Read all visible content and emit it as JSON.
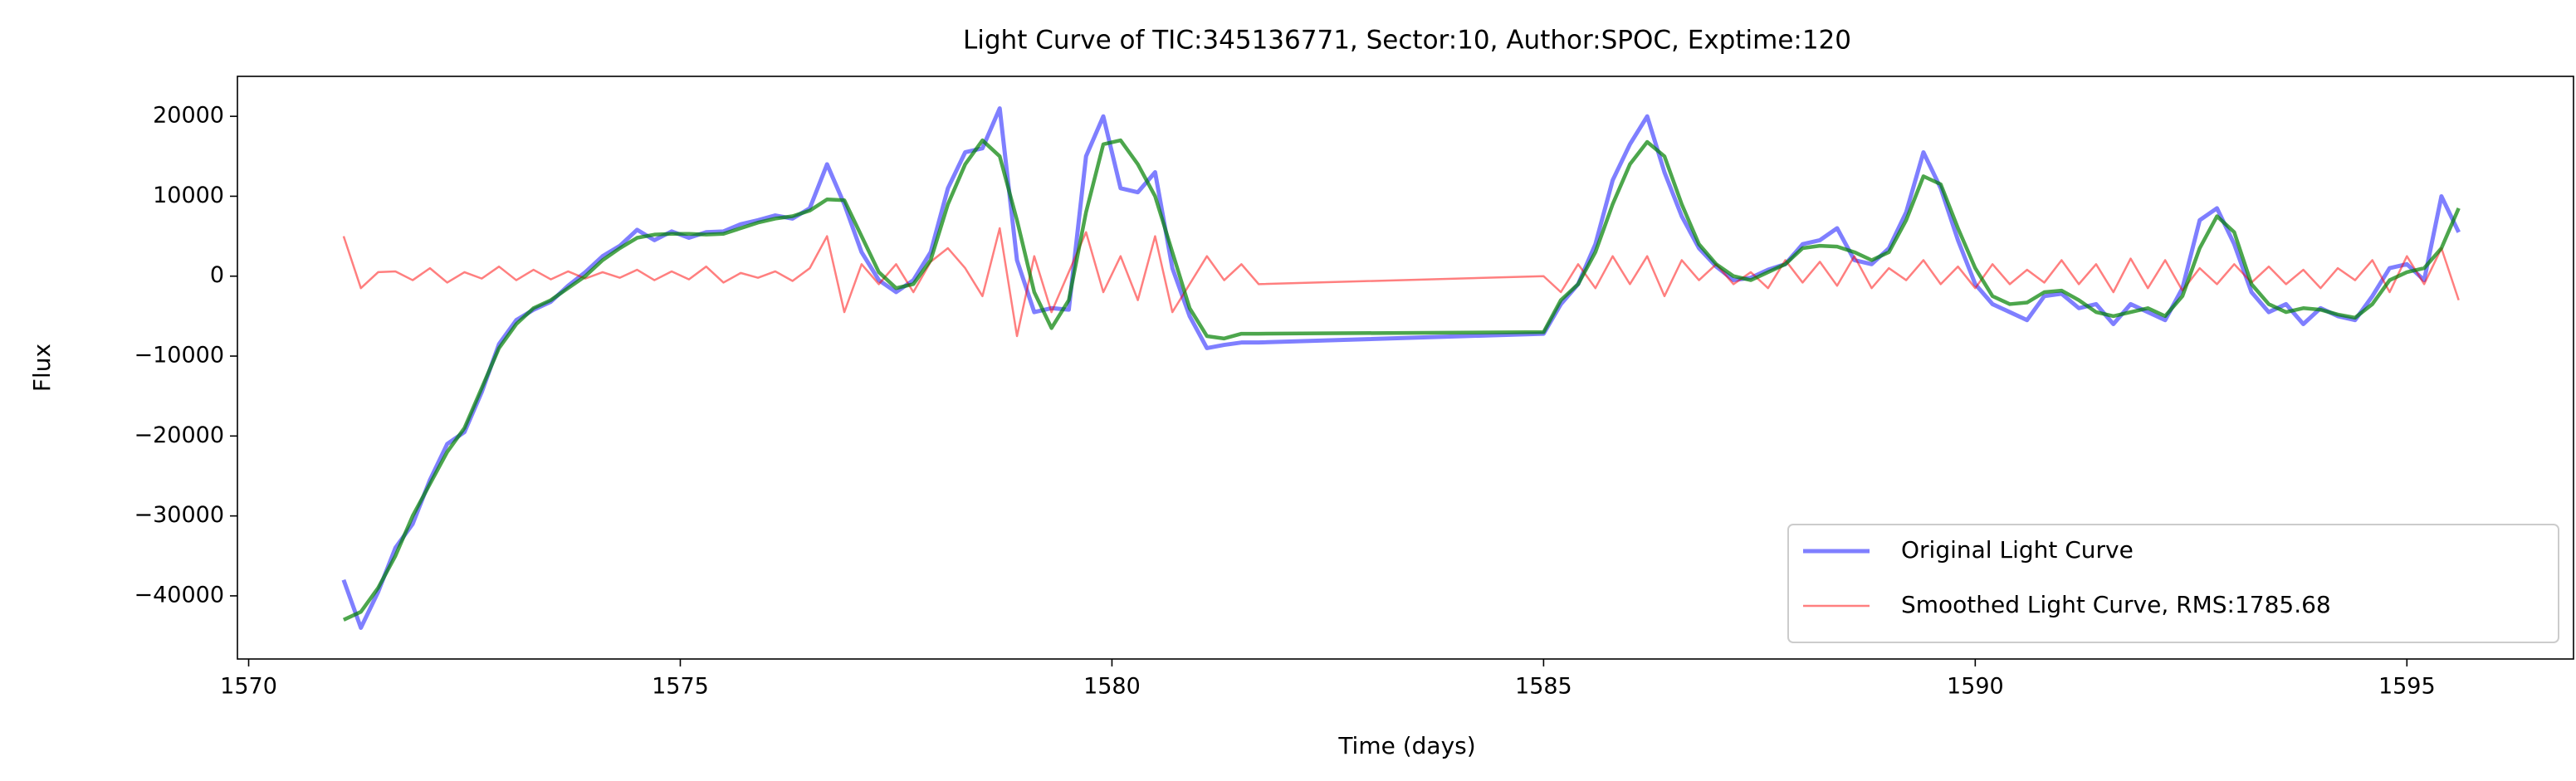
{
  "chart_data": {
    "type": "line",
    "title": "Light Curve of TIC:345136771, Sector:10, Author:SPOC, Exptime:120",
    "xlabel": "Time (days)",
    "ylabel": "Flux",
    "x": [
      1571.1,
      1571.3,
      1571.5,
      1571.7,
      1571.9,
      1572.1,
      1572.3,
      1572.5,
      1572.7,
      1572.9,
      1573.1,
      1573.3,
      1573.5,
      1573.7,
      1573.9,
      1574.1,
      1574.3,
      1574.5,
      1574.7,
      1574.9,
      1575.1,
      1575.3,
      1575.5,
      1575.7,
      1575.9,
      1576.1,
      1576.3,
      1576.5,
      1576.7,
      1576.9,
      1577.1,
      1577.3,
      1577.5,
      1577.7,
      1577.9,
      1578.1,
      1578.3,
      1578.5,
      1578.7,
      1578.9,
      1579.1,
      1579.3,
      1579.5,
      1579.7,
      1579.9,
      1580.1,
      1580.3,
      1580.5,
      1580.7,
      1580.9,
      1581.1,
      1581.3,
      1581.5,
      1581.7,
      1585.0,
      1585.2,
      1585.4,
      1585.6,
      1585.8,
      1586.0,
      1586.2,
      1586.4,
      1586.6,
      1586.8,
      1587.0,
      1587.2,
      1587.4,
      1587.6,
      1587.8,
      1588.0,
      1588.2,
      1588.4,
      1588.6,
      1588.8,
      1589.0,
      1589.2,
      1589.4,
      1589.6,
      1589.8,
      1590.0,
      1590.2,
      1590.4,
      1590.6,
      1590.8,
      1591.0,
      1591.2,
      1591.4,
      1591.6,
      1591.8,
      1592.0,
      1592.2,
      1592.4,
      1592.6,
      1592.8,
      1593.0,
      1593.2,
      1593.4,
      1593.6,
      1593.8,
      1594.0,
      1594.2,
      1594.4,
      1594.6,
      1594.8,
      1595.0,
      1595.2,
      1595.4,
      1595.6
    ],
    "series": [
      {
        "name": "Original Light Curve",
        "color": "#0000ff",
        "opacity": 0.5,
        "width": 5,
        "values": [
          -38000,
          -44000,
          -39500,
          -34000,
          -31000,
          -25500,
          -21000,
          -19500,
          -14500,
          -8500,
          -5500,
          -4200,
          -3200,
          -1200,
          500,
          2500,
          3800,
          5800,
          4500,
          5600,
          4800,
          5500,
          5600,
          6500,
          7000,
          7600,
          7200,
          8500,
          14000,
          9000,
          3000,
          -500,
          -2000,
          -500,
          3000,
          11000,
          15500,
          16000,
          21000,
          2000,
          -4500,
          -4000,
          -4200,
          15000,
          20000,
          11000,
          10500,
          13000,
          1000,
          -5000,
          -9000,
          -8600,
          -8300,
          -8300,
          -7200,
          -3500,
          -1000,
          4000,
          12000,
          16500,
          20000,
          13000,
          7500,
          3500,
          1200,
          -500,
          -200,
          800,
          1500,
          4000,
          4500,
          6000,
          2000,
          1500,
          3500,
          8000,
          15500,
          11000,
          4500,
          -1000,
          -3500,
          -4500,
          -5500,
          -2500,
          -2200,
          -4000,
          -3500,
          -6000,
          -3500,
          -4500,
          -5500,
          -1500,
          7000,
          8500,
          4000,
          -2000,
          -4500,
          -3500,
          -6000,
          -4000,
          -5000,
          -5500,
          -2500,
          1000,
          1500,
          -500,
          10000,
          5500
        ]
      },
      {
        "name": "Smoothed Light Curve, RMS:1785.68",
        "color": "#ff0000",
        "opacity": 0.5,
        "width": 2.5,
        "values": [
          5000,
          -1500,
          500,
          600,
          -500,
          1000,
          -800,
          500,
          -300,
          1200,
          -500,
          800,
          -400,
          600,
          -300,
          500,
          -200,
          800,
          -500,
          600,
          -400,
          1200,
          -800,
          400,
          -200,
          600,
          -600,
          1000,
          5000,
          -4500,
          1500,
          -1000,
          1500,
          -2000,
          1800,
          3500,
          1000,
          -2500,
          6000,
          -7500,
          2500,
          -4500,
          500,
          5500,
          -2000,
          2500,
          -3000,
          5000,
          -4500,
          -1000,
          2500,
          -500,
          1500,
          -1000,
          0,
          -2000,
          1500,
          -1500,
          2500,
          -1000,
          2500,
          -2500,
          2000,
          -500,
          1500,
          -1000,
          500,
          -1500,
          2000,
          -800,
          1800,
          -1200,
          2500,
          -1500,
          1000,
          -500,
          2000,
          -1000,
          1200,
          -1500,
          1500,
          -1000,
          800,
          -800,
          2000,
          -1000,
          1500,
          -2000,
          2200,
          -1500,
          2000,
          -1800,
          1000,
          -1000,
          1500,
          -800,
          1200,
          -1000,
          800,
          -1500,
          1000,
          -500,
          2000,
          -2000,
          2500,
          -1000,
          3500,
          -3000
        ]
      },
      {
        "color": "#008000",
        "opacity": 0.7,
        "width": 4.5,
        "values": [
          -43000,
          -42000,
          -39000,
          -35000,
          -30000,
          -26000,
          -22000,
          -19000,
          -14000,
          -9000,
          -6000,
          -4000,
          -3000,
          -1500,
          0,
          2000,
          3500,
          4800,
          5200,
          5300,
          5300,
          5200,
          5300,
          6000,
          6700,
          7200,
          7500,
          8200,
          9600,
          9500,
          5000,
          500,
          -1500,
          -1000,
          2000,
          9000,
          14000,
          17000,
          15000,
          7000,
          -2000,
          -6500,
          -3000,
          8000,
          16500,
          17000,
          14000,
          10000,
          3000,
          -4000,
          -7500,
          -7800,
          -7200,
          -7200,
          -7000,
          -3000,
          -1000,
          3000,
          9000,
          14000,
          16800,
          15000,
          9000,
          4000,
          1500,
          0,
          -500,
          500,
          1500,
          3500,
          3800,
          3700,
          3000,
          2000,
          3000,
          7000,
          12500,
          11500,
          6000,
          1000,
          -2500,
          -3500,
          -3300,
          -2000,
          -1800,
          -3000,
          -4500,
          -5000,
          -4500,
          -4000,
          -5000,
          -2500,
          3500,
          7500,
          5500,
          -1000,
          -3500,
          -4500,
          -4000,
          -4200,
          -4800,
          -5200,
          -3500,
          -500,
          500,
          1000,
          3500,
          8500
        ]
      }
    ],
    "xlim": [
      1569.87,
      1596.93
    ],
    "ylim": [
      -47900,
      25000
    ],
    "xticks": [
      1570,
      1575,
      1580,
      1585,
      1590,
      1595
    ],
    "yticks": [
      {
        "value": -40000,
        "label": "−40000"
      },
      {
        "value": -30000,
        "label": "−30000"
      },
      {
        "value": -20000,
        "label": "−20000"
      },
      {
        "value": -10000,
        "label": "−10000"
      },
      0,
      10000,
      20000
    ],
    "grid": false,
    "legend": "lower right"
  }
}
